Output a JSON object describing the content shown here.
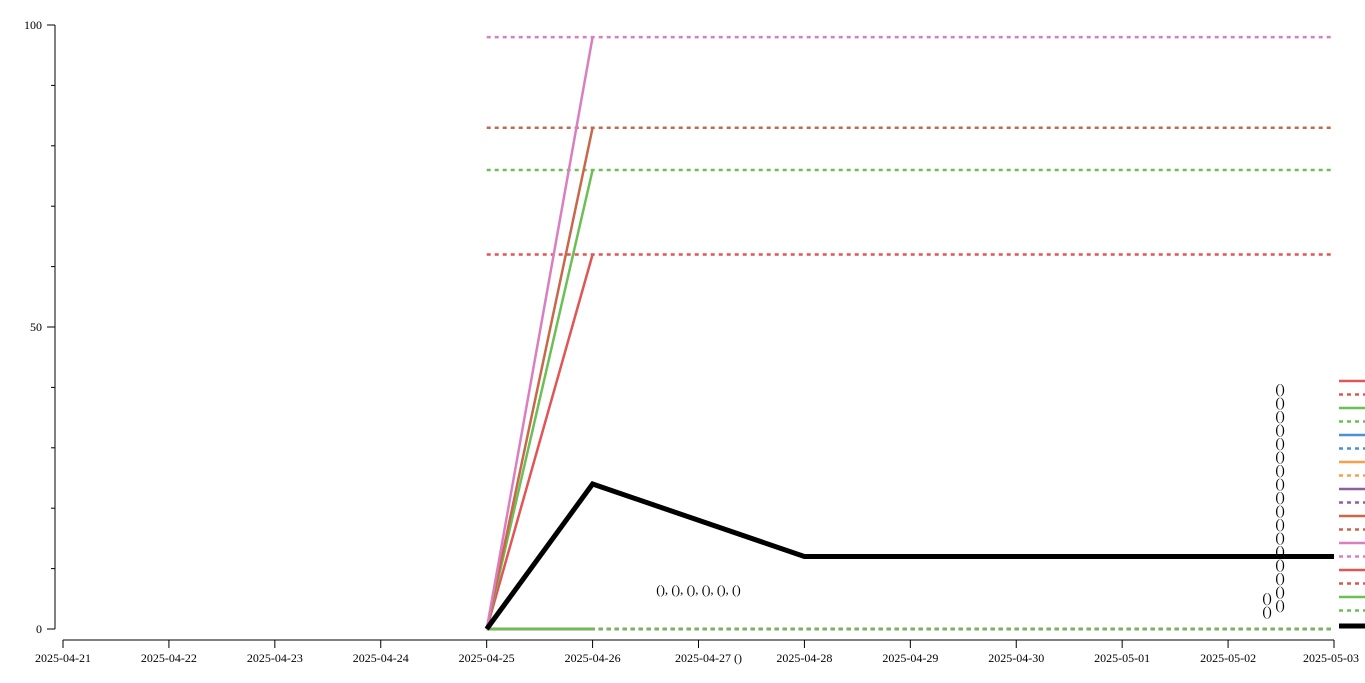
{
  "chart_data": {
    "type": "line",
    "title": "",
    "xlabel": "",
    "ylabel": "",
    "x_ticks": [
      "2025-04-21",
      "2025-04-22",
      "2025-04-23",
      "2025-04-24",
      "2025-04-25",
      "2025-04-26",
      "2025-04-27",
      "2025-04-28",
      "2025-04-29",
      "2025-04-30",
      "2025-05-01",
      "2025-05-02",
      "2025-05-03"
    ],
    "x_tick_suffix": {
      "2025-04-27": "()"
    },
    "y_ticks": [
      0,
      50,
      100
    ],
    "ylim": [
      0,
      100
    ],
    "xlim": [
      "2025-04-21",
      "2025-05-03"
    ],
    "grid": false,
    "legend": "right",
    "series": [
      {
        "style": "solid",
        "color": "#e05555",
        "x": [
          "2025-04-25",
          "2025-04-26"
        ],
        "values": [
          0,
          62
        ]
      },
      {
        "style": "dashed",
        "color": "#e05555",
        "x": [
          "2025-04-25",
          "2025-05-03"
        ],
        "values": [
          62,
          62
        ]
      },
      {
        "style": "solid",
        "color": "#6abf55",
        "x": [
          "2025-04-25",
          "2025-04-26"
        ],
        "values": [
          0,
          76
        ]
      },
      {
        "style": "dashed",
        "color": "#6abf55",
        "x": [
          "2025-04-25",
          "2025-05-03"
        ],
        "values": [
          76,
          76
        ]
      },
      {
        "style": "solid",
        "color": "#4a90d9",
        "x": [
          "2025-04-25",
          "2025-04-26"
        ],
        "values": [
          0,
          0
        ]
      },
      {
        "style": "dashed",
        "color": "#4a90d9",
        "x": [
          "2025-04-25",
          "2025-05-03"
        ],
        "values": [
          0,
          0
        ]
      },
      {
        "style": "solid",
        "color": "#f5a04a",
        "x": [
          "2025-04-25",
          "2025-04-26"
        ],
        "values": [
          0,
          0
        ]
      },
      {
        "style": "dashed",
        "color": "#f5a04a",
        "x": [
          "2025-04-25",
          "2025-05-03"
        ],
        "values": [
          0,
          0
        ]
      },
      {
        "style": "solid",
        "color": "#8e5ea2",
        "x": [
          "2025-04-25",
          "2025-04-26"
        ],
        "values": [
          0,
          0
        ]
      },
      {
        "style": "dashed",
        "color": "#8e5ea2",
        "x": [
          "2025-04-25",
          "2025-05-03"
        ],
        "values": [
          0,
          0
        ]
      },
      {
        "style": "solid",
        "color": "#c8674a",
        "x": [
          "2025-04-25",
          "2025-04-26"
        ],
        "values": [
          0,
          83
        ]
      },
      {
        "style": "dashed",
        "color": "#c8674a",
        "x": [
          "2025-04-25",
          "2025-05-03"
        ],
        "values": [
          83,
          83
        ]
      },
      {
        "style": "solid",
        "color": "#d97fc0",
        "x": [
          "2025-04-25",
          "2025-04-26"
        ],
        "values": [
          0,
          98
        ]
      },
      {
        "style": "dashed",
        "color": "#d97fc0",
        "x": [
          "2025-04-25",
          "2025-05-03"
        ],
        "values": [
          98,
          98
        ]
      },
      {
        "style": "solid",
        "color": "#e05555",
        "x": [
          "2025-04-25",
          "2025-04-26"
        ],
        "values": [
          0,
          0
        ]
      },
      {
        "style": "dashed",
        "color": "#e05555",
        "x": [
          "2025-04-25",
          "2025-05-03"
        ],
        "values": [
          0,
          0
        ]
      },
      {
        "style": "solid",
        "color": "#6abf55",
        "x": [
          "2025-04-25",
          "2025-04-26"
        ],
        "values": [
          0,
          0
        ]
      },
      {
        "style": "dashed",
        "color": "#6abf55",
        "x": [
          "2025-04-25",
          "2025-05-03"
        ],
        "values": [
          0,
          0
        ]
      },
      {
        "style": "thick",
        "color": "#000000",
        "x": [
          "2025-04-25",
          "2025-04-26",
          "2025-04-28",
          "2025-05-03"
        ],
        "values": [
          0,
          24,
          12,
          12
        ]
      }
    ],
    "annotations": [
      {
        "text": "(), (), (), (), (), ()",
        "x": "2025-04-27",
        "y": 5.8
      }
    ],
    "paren_stack": {
      "text": "()",
      "x": "2025-05-02",
      "y_top": 41,
      "count": 17
    },
    "paren_pair": {
      "text": "()",
      "x": "2025-05-02",
      "y_top": 6.4,
      "count": 2
    }
  }
}
